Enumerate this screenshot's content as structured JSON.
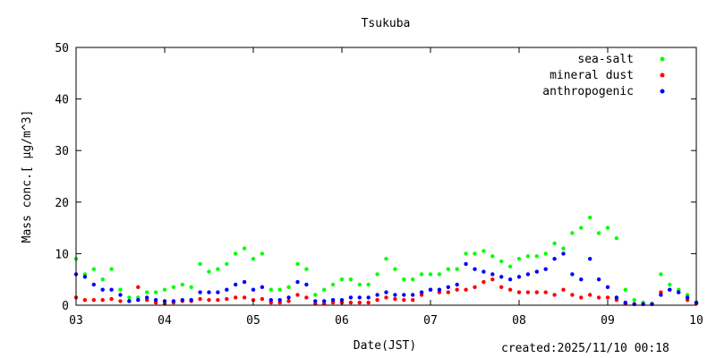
{
  "chart_data": {
    "type": "scatter",
    "title": "Tsukuba",
    "xlabel": "Date(JST)",
    "ylabel": "Mass conc.[ μg/m^3]",
    "xlim": [
      3,
      10
    ],
    "ylim": [
      0,
      50
    ],
    "x_ticks": [
      "03",
      "04",
      "05",
      "06",
      "07",
      "08",
      "09",
      "10"
    ],
    "y_ticks": [
      0,
      10,
      20,
      30,
      40,
      50
    ],
    "grid": false,
    "legend_position": "top-right",
    "series": [
      {
        "name": "sea-salt",
        "color": "#00ff00",
        "x": [
          3.0,
          3.1,
          3.2,
          3.3,
          3.4,
          3.5,
          3.6,
          3.7,
          3.8,
          3.9,
          4.0,
          4.1,
          4.2,
          4.3,
          4.4,
          4.5,
          4.6,
          4.7,
          4.8,
          4.9,
          5.0,
          5.1,
          5.2,
          5.3,
          5.4,
          5.5,
          5.6,
          5.7,
          5.8,
          5.9,
          6.0,
          6.1,
          6.2,
          6.3,
          6.4,
          6.5,
          6.6,
          6.7,
          6.8,
          6.9,
          7.0,
          7.1,
          7.2,
          7.3,
          7.4,
          7.5,
          7.6,
          7.7,
          7.8,
          7.9,
          8.0,
          8.1,
          8.2,
          8.3,
          8.4,
          8.5,
          8.6,
          8.7,
          8.8,
          8.9,
          9.0,
          9.1,
          9.2,
          9.3,
          9.4,
          9.5,
          9.6,
          9.7,
          9.8,
          9.9,
          10.0
        ],
        "y": [
          9,
          6,
          7,
          5,
          7,
          3,
          1.5,
          1.5,
          2.5,
          2.5,
          3,
          3.5,
          4,
          3.5,
          8,
          6.5,
          7,
          8,
          10,
          11,
          9,
          10,
          3,
          3,
          3.5,
          8,
          7,
          2,
          3,
          4,
          5,
          5,
          4,
          4,
          6,
          9,
          7,
          5,
          5,
          6,
          6,
          6,
          7,
          7,
          10,
          10,
          10.5,
          9.5,
          8.5,
          7.5,
          9,
          9.5,
          9.5,
          10,
          12,
          11,
          14,
          15,
          17,
          14,
          15,
          13,
          3,
          1,
          0.5,
          0.3,
          6,
          4,
          3,
          2,
          0.5
        ]
      },
      {
        "name": "mineral dust",
        "color": "#ff0000",
        "x": [
          3.0,
          3.1,
          3.2,
          3.3,
          3.4,
          3.5,
          3.6,
          3.7,
          3.8,
          3.9,
          4.0,
          4.1,
          4.2,
          4.3,
          4.4,
          4.5,
          4.6,
          4.7,
          4.8,
          4.9,
          5.0,
          5.1,
          5.2,
          5.3,
          5.4,
          5.5,
          5.6,
          5.7,
          5.8,
          5.9,
          6.0,
          6.1,
          6.2,
          6.3,
          6.4,
          6.5,
          6.6,
          6.7,
          6.8,
          6.9,
          7.0,
          7.1,
          7.2,
          7.3,
          7.4,
          7.5,
          7.6,
          7.7,
          7.8,
          7.9,
          8.0,
          8.1,
          8.2,
          8.3,
          8.4,
          8.5,
          8.6,
          8.7,
          8.8,
          8.9,
          9.0,
          9.1,
          9.2,
          9.3,
          9.4,
          9.5,
          9.6,
          9.7,
          9.8,
          9.9,
          10.0
        ],
        "y": [
          1.5,
          1,
          1,
          1,
          1.2,
          0.8,
          0.8,
          3.5,
          1,
          0.5,
          0.3,
          0.5,
          0.8,
          0.8,
          1.2,
          1,
          1,
          1.2,
          1.5,
          1.5,
          1,
          1.2,
          0.5,
          0.5,
          0.8,
          2,
          1.5,
          0.3,
          0.3,
          0.5,
          0.5,
          0.5,
          0.5,
          0.5,
          1,
          1.5,
          1.2,
          1,
          1,
          2,
          3,
          2.5,
          2.5,
          3,
          3,
          3.5,
          4.5,
          5,
          3.5,
          3,
          2.5,
          2.5,
          2.5,
          2.5,
          2,
          3,
          2,
          1.5,
          2,
          1.5,
          1.5,
          1,
          0.3,
          0.2,
          0.2,
          0.2,
          2.5,
          3,
          2.5,
          1,
          0.3
        ]
      },
      {
        "name": "anthropogenic",
        "color": "#0000ff",
        "x": [
          3.0,
          3.1,
          3.2,
          3.3,
          3.4,
          3.5,
          3.6,
          3.7,
          3.8,
          3.9,
          4.0,
          4.1,
          4.2,
          4.3,
          4.4,
          4.5,
          4.6,
          4.7,
          4.8,
          4.9,
          5.0,
          5.1,
          5.2,
          5.3,
          5.4,
          5.5,
          5.6,
          5.7,
          5.8,
          5.9,
          6.0,
          6.1,
          6.2,
          6.3,
          6.4,
          6.5,
          6.6,
          6.7,
          6.8,
          6.9,
          7.0,
          7.1,
          7.2,
          7.3,
          7.4,
          7.5,
          7.6,
          7.7,
          7.8,
          7.9,
          8.0,
          8.1,
          8.2,
          8.3,
          8.4,
          8.5,
          8.6,
          8.7,
          8.8,
          8.9,
          9.0,
          9.1,
          9.2,
          9.3,
          9.4,
          9.5,
          9.6,
          9.7,
          9.8,
          9.9,
          10.0
        ],
        "y": [
          6,
          5.5,
          4,
          3,
          3,
          2,
          0.8,
          1,
          1.5,
          1,
          0.8,
          0.8,
          1,
          1,
          2.5,
          2.5,
          2.5,
          3,
          4,
          4.5,
          3,
          3.5,
          1,
          1,
          1.5,
          4.5,
          4,
          0.8,
          0.8,
          1,
          1,
          1.5,
          1.5,
          1.5,
          2,
          2.5,
          2,
          2,
          2,
          2.5,
          3,
          3,
          3.5,
          4,
          8,
          7,
          6.5,
          6,
          5.5,
          5,
          5.5,
          6,
          6.5,
          7,
          9,
          10,
          6,
          5,
          9,
          5,
          3.5,
          1.5,
          0.5,
          0.2,
          0.2,
          0.2,
          2,
          3,
          2.5,
          1.5,
          0.5
        ]
      }
    ]
  },
  "footer": {
    "created": "created:2025/11/10 00:18"
  }
}
